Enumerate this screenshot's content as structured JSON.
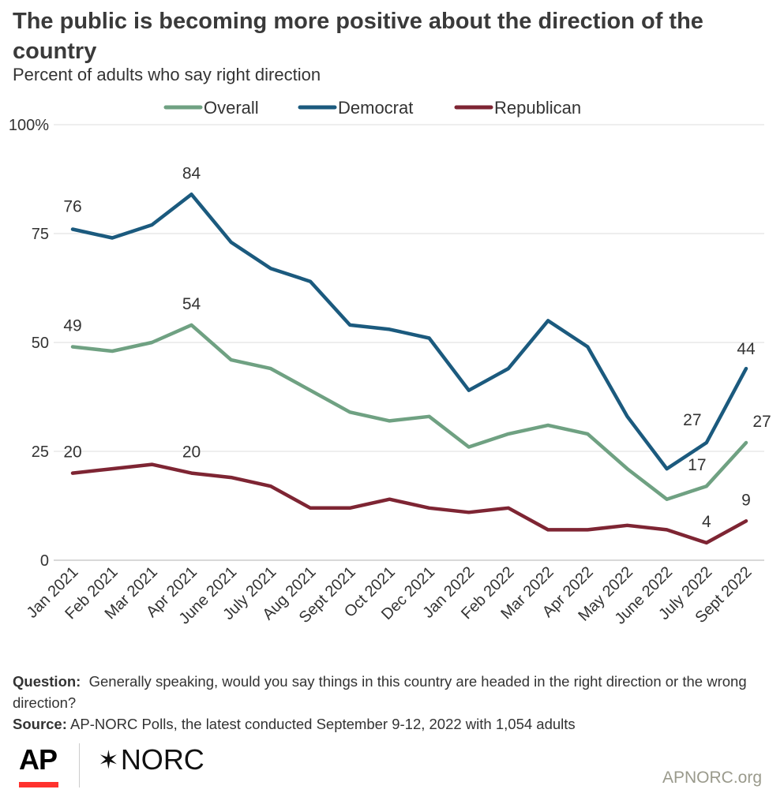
{
  "title": "The public is becoming more positive about the direction of the country",
  "subtitle": "Percent of adults who say right direction",
  "footer": {
    "question_label": "Question:",
    "question_text": "Generally speaking, would you say things in this country are headed in the right direction or the wrong direction?",
    "source_label": "Source:",
    "source_text": "AP-NORC Polls, the latest conducted September 9-12, 2022 with 1,054 adults"
  },
  "logos": {
    "ap": "AP",
    "norc": "NORC",
    "norc_icon": "asterisk-star-icon"
  },
  "site": "APNORC.org",
  "chart_data": {
    "type": "line",
    "title": "The public is becoming more positive about the direction of the country",
    "subtitle": "Percent of adults who say right direction",
    "xlabel": "",
    "ylabel": "",
    "ylim": [
      0,
      100
    ],
    "yticks": [
      0,
      25,
      50,
      75,
      100
    ],
    "ytick_labels": [
      "0",
      "25",
      "50",
      "75",
      "100%"
    ],
    "grid": true,
    "legend": "top",
    "categories": [
      "Jan 2021",
      "Feb 2021",
      "Mar 2021",
      "Apr 2021",
      "June 2021",
      "July 2021",
      "Aug 2021",
      "Sept 2021",
      "Oct 2021",
      "Dec 2021",
      "Jan 2022",
      "Feb 2022",
      "Mar 2022",
      "Apr 2022",
      "May 2022",
      "June 2022",
      "July 2022",
      "Sept 2022"
    ],
    "series": [
      {
        "name": "Overall",
        "color": "#6fa182",
        "values": [
          49,
          48,
          50,
          54,
          46,
          44,
          39,
          34,
          32,
          33,
          26,
          29,
          31,
          29,
          21,
          14,
          17,
          27
        ]
      },
      {
        "name": "Democrat",
        "color": "#1b5a7e",
        "values": [
          76,
          74,
          77,
          84,
          73,
          67,
          64,
          54,
          53,
          51,
          39,
          44,
          55,
          49,
          33,
          21,
          27,
          44
        ]
      },
      {
        "name": "Republican",
        "color": "#7e2533",
        "values": [
          20,
          21,
          22,
          20,
          19,
          17,
          12,
          12,
          14,
          12,
          11,
          12,
          7,
          7,
          8,
          7,
          4,
          9
        ]
      }
    ],
    "data_labels": [
      {
        "series": "Democrat",
        "category": "Jan 2021",
        "text": "76"
      },
      {
        "series": "Democrat",
        "category": "Apr 2021",
        "text": "84"
      },
      {
        "series": "Democrat",
        "category": "July 2022",
        "text": "27"
      },
      {
        "series": "Democrat",
        "category": "Sept 2022",
        "text": "44"
      },
      {
        "series": "Overall",
        "category": "Jan 2021",
        "text": "49"
      },
      {
        "series": "Overall",
        "category": "Apr 2021",
        "text": "54"
      },
      {
        "series": "Overall",
        "category": "July 2022",
        "text": "17"
      },
      {
        "series": "Overall",
        "category": "Sept 2022",
        "text": "27"
      },
      {
        "series": "Republican",
        "category": "Jan 2021",
        "text": "20"
      },
      {
        "series": "Republican",
        "category": "Apr 2021",
        "text": "20"
      },
      {
        "series": "Republican",
        "category": "July 2022",
        "text": "4"
      },
      {
        "series": "Republican",
        "category": "Sept 2022",
        "text": "9"
      }
    ]
  }
}
